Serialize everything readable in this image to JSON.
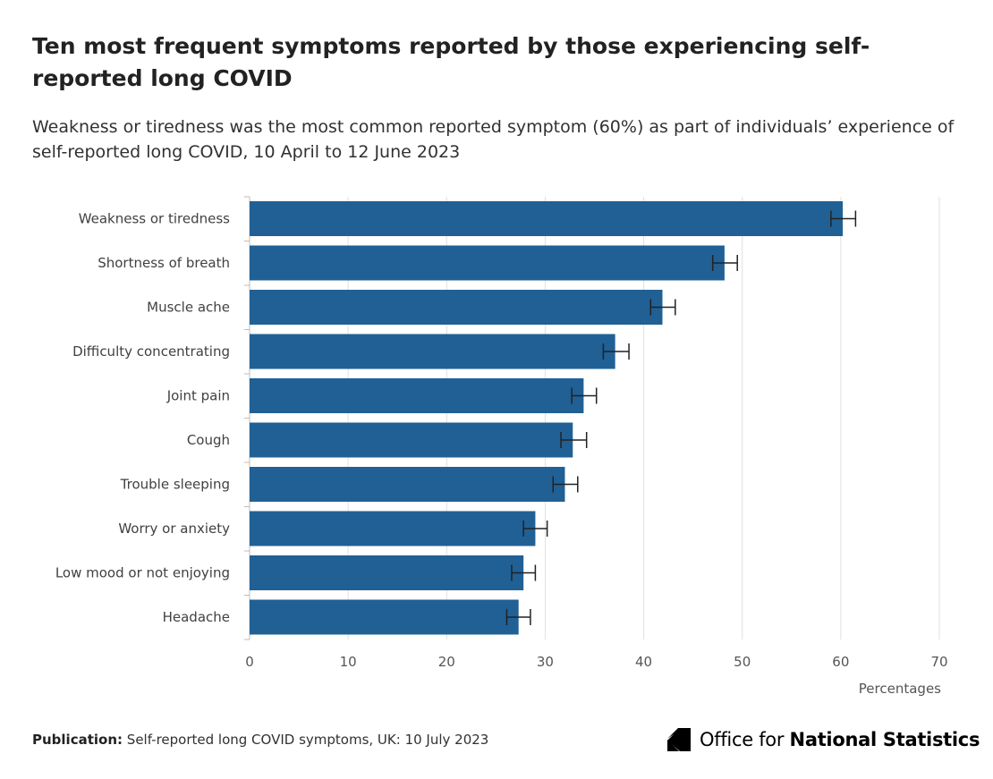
{
  "header": {
    "title": "Ten most frequent symptoms reported by those experiencing self-reported long COVID",
    "subtitle": "Weakness or tiredness was the most common reported symptom (60%) as part of individuals’ experience of self-reported long COVID, 10 April to 12 June 2023"
  },
  "footer": {
    "publication_label": "Publication:",
    "publication_text": "Self-reported long COVID symptoms, UK: 10 July 2023",
    "logo_text_regular": "Office for ",
    "logo_text_bold": "National Statistics"
  },
  "colors": {
    "bar": "#206095",
    "gridline": "#e0e0e0",
    "errorbar": "#222222"
  },
  "chart_data": {
    "type": "bar",
    "orientation": "horizontal",
    "categories": [
      "Weakness or tiredness",
      "Shortness of breath",
      "Muscle ache",
      "Difficulty concentrating",
      "Joint pain",
      "Cough",
      "Trouble sleeping",
      "Worry or anxiety",
      "Low mood or not enjoying",
      "Headache"
    ],
    "values": [
      60.2,
      48.2,
      41.9,
      37.1,
      33.9,
      32.8,
      32.0,
      29.0,
      27.8,
      27.3
    ],
    "error_lower": [
      59.0,
      47.0,
      40.7,
      35.9,
      32.7,
      31.6,
      30.8,
      27.8,
      26.6,
      26.1
    ],
    "error_upper": [
      61.5,
      49.5,
      43.2,
      38.5,
      35.2,
      34.2,
      33.3,
      30.2,
      29.0,
      28.5
    ],
    "xticks": [
      0,
      10,
      20,
      30,
      40,
      50,
      60,
      70
    ],
    "xlim": [
      0,
      70
    ],
    "xlabel": "Percentages",
    "grid": "vertical"
  }
}
